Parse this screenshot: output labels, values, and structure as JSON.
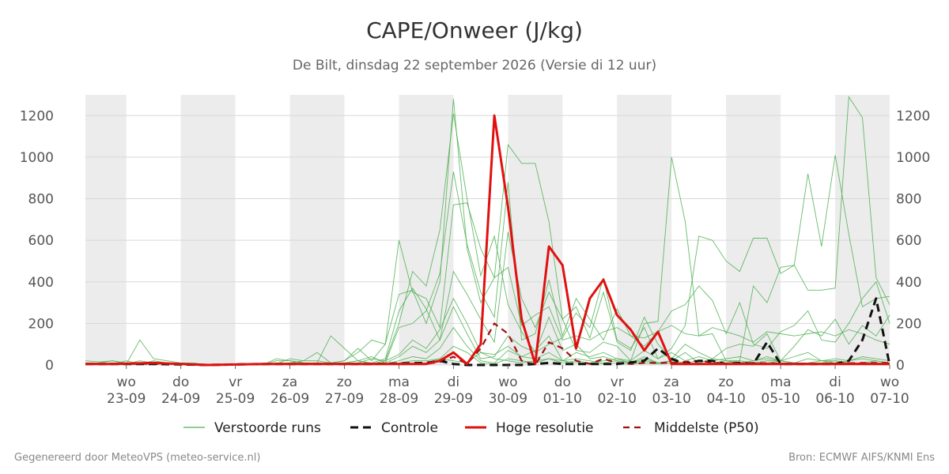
{
  "header": {
    "title": "CAPE/Onweer (J/kg)",
    "subtitle": "De Bilt, dinsdag 22 september 2026 (Versie di 12 uur)"
  },
  "footer": {
    "left": "Gegenereerd door MeteoVPS (meteo-service.nl)",
    "right": "Bron: ECMWF AIFS/KNMI Ens"
  },
  "colors": {
    "ensemble": "#4caf50",
    "control": "#111111",
    "high_res": "#e01010",
    "median": "#a01010",
    "weekend_band": "#ececec",
    "grid": "#d8d8d8"
  },
  "chart_data": {
    "type": "line",
    "title": "CAPE/Onweer (J/kg)",
    "x_unit": "days since 23-09 00:00 (tick = midday)",
    "x_range": [
      -0.25,
      14.5
    ],
    "ylim": [
      0,
      1300
    ],
    "yticks": [
      0,
      200,
      400,
      600,
      800,
      1000,
      1200
    ],
    "grid": true,
    "legend_position": "bottom",
    "day_ticks": [
      {
        "day": "wo",
        "date": "23-09"
      },
      {
        "day": "do",
        "date": "24-09"
      },
      {
        "day": "vr",
        "date": "25-09"
      },
      {
        "day": "za",
        "date": "26-09"
      },
      {
        "day": "zo",
        "date": "27-09"
      },
      {
        "day": "ma",
        "date": "28-09"
      },
      {
        "day": "di",
        "date": "29-09"
      },
      {
        "day": "wo",
        "date": "30-09"
      },
      {
        "day": "do",
        "date": "01-10"
      },
      {
        "day": "vr",
        "date": "02-10"
      },
      {
        "day": "za",
        "date": "03-10"
      },
      {
        "day": "zo",
        "date": "04-10"
      },
      {
        "day": "ma",
        "date": "05-10"
      },
      {
        "day": "di",
        "date": "06-10"
      },
      {
        "day": "wo",
        "date": "07-10"
      }
    ],
    "shaded_days": [
      0,
      2,
      4,
      6,
      8,
      10,
      12,
      14
    ],
    "legend": [
      "Verstoorde runs",
      "Controle",
      "Hoge resolutie",
      "Middelste (P50)"
    ],
    "series": [
      {
        "name": "Controle",
        "style": "dashed",
        "x": [
          -0.25,
          0.5,
          1,
          2,
          3,
          4,
          5,
          6,
          6.25,
          6.5,
          6.75,
          7,
          7.25,
          7.5,
          7.75,
          8,
          8.25,
          8.5,
          9,
          9.5,
          10,
          10.25,
          10.5,
          10.75,
          11,
          11.25,
          11.5,
          11.75,
          12,
          12.25,
          12.5,
          13,
          13.25,
          13.5,
          13.75,
          14,
          14.25,
          14.5
        ],
        "y": [
          5,
          5,
          5,
          0,
          5,
          5,
          5,
          10,
          20,
          5,
          0,
          0,
          0,
          0,
          0,
          5,
          10,
          5,
          5,
          5,
          20,
          80,
          30,
          5,
          20,
          20,
          5,
          10,
          5,
          110,
          5,
          5,
          5,
          5,
          20,
          120,
          320,
          0
        ]
      },
      {
        "name": "Hoge resolutie",
        "style": "solid",
        "x": [
          -0.25,
          0.25,
          1,
          1.5,
          2,
          3,
          4,
          5,
          5.5,
          6,
          6.25,
          6.5,
          6.75,
          7,
          7.25,
          7.5,
          7.75,
          8,
          8.25,
          8.5,
          8.75,
          9,
          9.25,
          9.5,
          9.75,
          10,
          10.25,
          10.5,
          10.75,
          11,
          12,
          13,
          14,
          14.5
        ],
        "y": [
          5,
          5,
          10,
          5,
          0,
          5,
          5,
          5,
          5,
          5,
          20,
          60,
          5,
          100,
          1200,
          760,
          220,
          5,
          570,
          480,
          80,
          320,
          410,
          240,
          170,
          70,
          160,
          5,
          5,
          5,
          5,
          5,
          5,
          5
        ]
      },
      {
        "name": "Middelste (P50)",
        "style": "dashed",
        "x": [
          -0.25,
          1,
          2,
          3,
          4,
          5,
          6,
          6.25,
          6.5,
          6.75,
          7,
          7.25,
          7.5,
          7.75,
          8,
          8.25,
          8.5,
          8.75,
          9,
          9.25,
          9.5,
          9.75,
          10,
          10.5,
          11,
          11.5,
          12,
          13,
          14,
          14.5
        ],
        "y": [
          5,
          5,
          0,
          5,
          5,
          5,
          5,
          15,
          40,
          5,
          80,
          200,
          150,
          20,
          0,
          110,
          80,
          20,
          5,
          30,
          10,
          5,
          10,
          10,
          20,
          5,
          10,
          5,
          10,
          10
        ]
      }
    ]
  },
  "ensemble_series": {
    "name": "Verstoorde runs",
    "x": [
      -0.25,
      0,
      0.25,
      0.5,
      0.75,
      1,
      1.25,
      1.5,
      1.75,
      2,
      2.5,
      3,
      3.25,
      3.5,
      3.75,
      4,
      4.25,
      4.5,
      4.75,
      5,
      5.25,
      5.5,
      5.75,
      6,
      6.25,
      6.5,
      6.75,
      7,
      7.25,
      7.5,
      7.75,
      8,
      8.25,
      8.5,
      8.75,
      9,
      9.25,
      9.5,
      9.75,
      10,
      10.25,
      10.5,
      10.75,
      11,
      11.25,
      11.5,
      11.75,
      12,
      12.25,
      12.5,
      12.75,
      13,
      13.25,
      13.5,
      13.75,
      14,
      14.25,
      14.5
    ],
    "runs": [
      [
        10,
        5,
        10,
        5,
        5,
        10,
        5,
        5,
        5,
        0,
        0,
        0,
        10,
        5,
        5,
        5,
        10,
        10,
        5,
        5,
        5,
        5,
        5,
        10,
        30,
        20,
        10,
        60,
        30,
        20,
        10,
        20,
        30,
        20,
        10,
        10,
        20,
        30,
        10,
        20,
        10,
        20,
        10,
        5,
        10,
        20,
        10,
        10,
        20,
        20,
        10,
        10,
        20,
        20,
        10,
        10,
        10,
        10
      ],
      [
        20,
        15,
        20,
        10,
        5,
        20,
        10,
        5,
        5,
        0,
        0,
        0,
        30,
        20,
        10,
        10,
        10,
        20,
        60,
        120,
        100,
        340,
        360,
        200,
        400,
        1280,
        560,
        300,
        420,
        470,
        190,
        240,
        280,
        120,
        140,
        120,
        160,
        180,
        140,
        130,
        160,
        190,
        150,
        140,
        180,
        160,
        140,
        110,
        160,
        150,
        140,
        150,
        160,
        140,
        170,
        150,
        120,
        100
      ],
      [
        5,
        10,
        5,
        20,
        5,
        5,
        10,
        10,
        5,
        0,
        0,
        0,
        5,
        30,
        20,
        20,
        10,
        20,
        80,
        20,
        100,
        600,
        350,
        320,
        180,
        770,
        780,
        560,
        420,
        1060,
        970,
        970,
        690,
        220,
        70,
        60,
        110,
        90,
        20,
        200,
        210,
        1000,
        690,
        140,
        150,
        20,
        20,
        380,
        300,
        470,
        480,
        360,
        360,
        370,
        1290,
        1190,
        420,
        290
      ],
      [
        5,
        5,
        10,
        5,
        20,
        10,
        5,
        5,
        5,
        0,
        0,
        0,
        10,
        10,
        20,
        60,
        10,
        10,
        10,
        30,
        20,
        200,
        450,
        380,
        650,
        1210,
        800,
        430,
        620,
        290,
        160,
        60,
        100,
        130,
        250,
        180,
        420,
        120,
        80,
        180,
        30,
        80,
        190,
        620,
        600,
        500,
        450,
        610,
        610,
        440,
        480,
        920,
        570,
        1010,
        630,
        280,
        320,
        330
      ],
      [
        5,
        10,
        20,
        5,
        120,
        30,
        20,
        10,
        5,
        0,
        0,
        0,
        20,
        20,
        10,
        5,
        10,
        10,
        20,
        40,
        10,
        180,
        200,
        260,
        440,
        930,
        580,
        350,
        230,
        880,
        120,
        150,
        410,
        140,
        320,
        220,
        120,
        270,
        140,
        90,
        160,
        260,
        290,
        380,
        310,
        150,
        300,
        100,
        80,
        160,
        190,
        260,
        120,
        110,
        200,
        320,
        400,
        200
      ],
      [
        10,
        10,
        5,
        10,
        5,
        5,
        5,
        10,
        10,
        0,
        0,
        0,
        5,
        10,
        10,
        10,
        140,
        80,
        20,
        10,
        30,
        260,
        370,
        270,
        120,
        450,
        340,
        220,
        110,
        640,
        320,
        180,
        350,
        220,
        280,
        130,
        350,
        110,
        70,
        230,
        100,
        30,
        100,
        60,
        30,
        80,
        100,
        90,
        150,
        20,
        90,
        170,
        140,
        220,
        100,
        190,
        140,
        240
      ],
      [
        5,
        5,
        5,
        5,
        5,
        5,
        10,
        5,
        5,
        0,
        0,
        0,
        5,
        5,
        5,
        5,
        5,
        10,
        20,
        5,
        20,
        50,
        120,
        80,
        170,
        320,
        200,
        60,
        50,
        90,
        40,
        70,
        140,
        20,
        60,
        40,
        60,
        30,
        20,
        70,
        30,
        60,
        20,
        40,
        20,
        30,
        40,
        20,
        30,
        20,
        40,
        60,
        20,
        30,
        20,
        40,
        30,
        20
      ],
      [
        5,
        10,
        5,
        10,
        5,
        5,
        5,
        10,
        5,
        0,
        0,
        0,
        5,
        10,
        5,
        10,
        10,
        5,
        5,
        10,
        10,
        40,
        90,
        60,
        120,
        280,
        150,
        30,
        40,
        140,
        90,
        60,
        230,
        70,
        100,
        30,
        40,
        20,
        10,
        40,
        10,
        20,
        60,
        10,
        30,
        20,
        10,
        20,
        40,
        20,
        10,
        30,
        20,
        10,
        20,
        30,
        20,
        10
      ],
      [
        10,
        5,
        5,
        5,
        5,
        5,
        5,
        5,
        5,
        0,
        0,
        0,
        5,
        5,
        5,
        5,
        10,
        5,
        10,
        5,
        5,
        20,
        40,
        30,
        80,
        180,
        90,
        20,
        10,
        70,
        40,
        30,
        60,
        20,
        30,
        20,
        10,
        20,
        10,
        30,
        10,
        20,
        10,
        20,
        10,
        10,
        20,
        10,
        10,
        20,
        10,
        10,
        10,
        20,
        10,
        10,
        20,
        10
      ],
      [
        5,
        5,
        5,
        5,
        5,
        5,
        5,
        5,
        5,
        0,
        0,
        0,
        5,
        5,
        5,
        5,
        5,
        5,
        5,
        5,
        5,
        10,
        20,
        20,
        30,
        90,
        60,
        10,
        5,
        30,
        20,
        10,
        30,
        10,
        20,
        10,
        5,
        10,
        5,
        10,
        5,
        10,
        5,
        10,
        5,
        5,
        10,
        5,
        5,
        10,
        5,
        5,
        5,
        10,
        5,
        5,
        10,
        5
      ]
    ]
  }
}
